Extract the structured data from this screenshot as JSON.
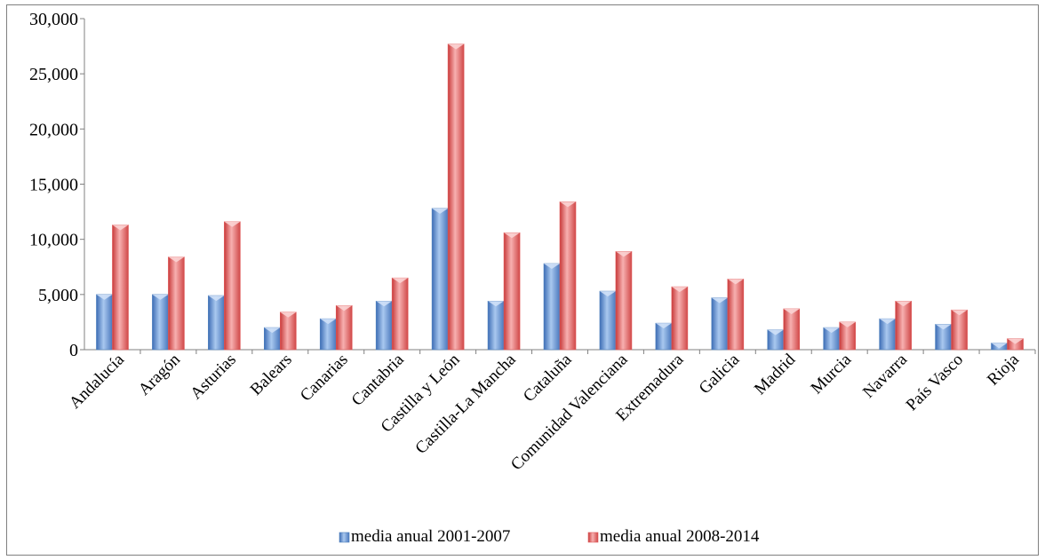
{
  "chart_data": {
    "type": "bar",
    "title": "",
    "xlabel": "",
    "ylabel": "",
    "ylim": [
      0,
      30000
    ],
    "yticks": [
      "0",
      "5,000",
      "10,000",
      "15,000",
      "20,000",
      "25,000",
      "30,000"
    ],
    "ytick_values": [
      0,
      5000,
      10000,
      15000,
      20000,
      25000,
      30000
    ],
    "grid": false,
    "legend_position": "bottom",
    "categories": [
      "Andalucía",
      "Aragón",
      "Asturias",
      "Balears",
      "Canarias",
      "Cantabria",
      "Castilla y León",
      "Castilla-La Mancha",
      "Cataluña",
      "Comunidad Valenciana",
      "Extremadura",
      "Galicia",
      "Madrid",
      "Murcia",
      "Navarra",
      "País Vasco",
      "Rioja"
    ],
    "series": [
      {
        "name": "media anual 2001-2007",
        "color": "#4f81bd",
        "values": [
          5000,
          5000,
          4900,
          2000,
          2800,
          4400,
          12800,
          4400,
          7800,
          5300,
          2400,
          4700,
          1800,
          2000,
          2800,
          2300,
          600
        ]
      },
      {
        "name": "media anual 2008-2014",
        "color": "#e05a5a",
        "values": [
          11300,
          8400,
          11600,
          3400,
          4000,
          6500,
          27700,
          10600,
          13400,
          8900,
          5700,
          6400,
          3700,
          2500,
          4400,
          3600,
          1000
        ]
      }
    ]
  }
}
